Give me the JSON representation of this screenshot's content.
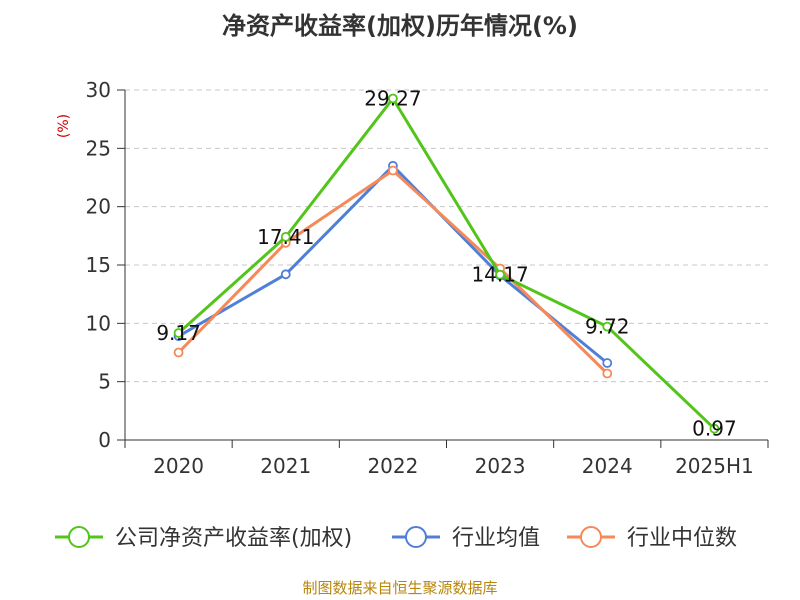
{
  "chart_data": {
    "type": "line",
    "title": "净资产收益率(加权)历年情况(%)",
    "xlabel": "",
    "ylabel": "(%)",
    "categories": [
      "2020",
      "2021",
      "2022",
      "2023",
      "2024",
      "2025H1"
    ],
    "ylim": [
      0,
      30
    ],
    "yticks": [
      0,
      5,
      10,
      15,
      20,
      25,
      30
    ],
    "grid": true,
    "legend_position": "bottom",
    "series": [
      {
        "name": "公司净资产收益率(加权)",
        "color": "#52c41a",
        "values": [
          9.17,
          17.41,
          29.27,
          14.17,
          9.72,
          0.97
        ],
        "show_labels": true
      },
      {
        "name": "行业均值",
        "color": "#4f7fd6",
        "values": [
          8.9,
          14.2,
          23.5,
          14.1,
          6.6,
          null
        ],
        "show_labels": false
      },
      {
        "name": "行业中位数",
        "color": "#f5895a",
        "values": [
          7.5,
          16.9,
          23.1,
          14.7,
          5.7,
          null
        ],
        "show_labels": false
      }
    ],
    "data_labels": [
      "9.17",
      "17.41",
      "29.27",
      "14.17",
      "9.72",
      "0.97"
    ]
  },
  "source": "制图数据来自恒生聚源数据库"
}
